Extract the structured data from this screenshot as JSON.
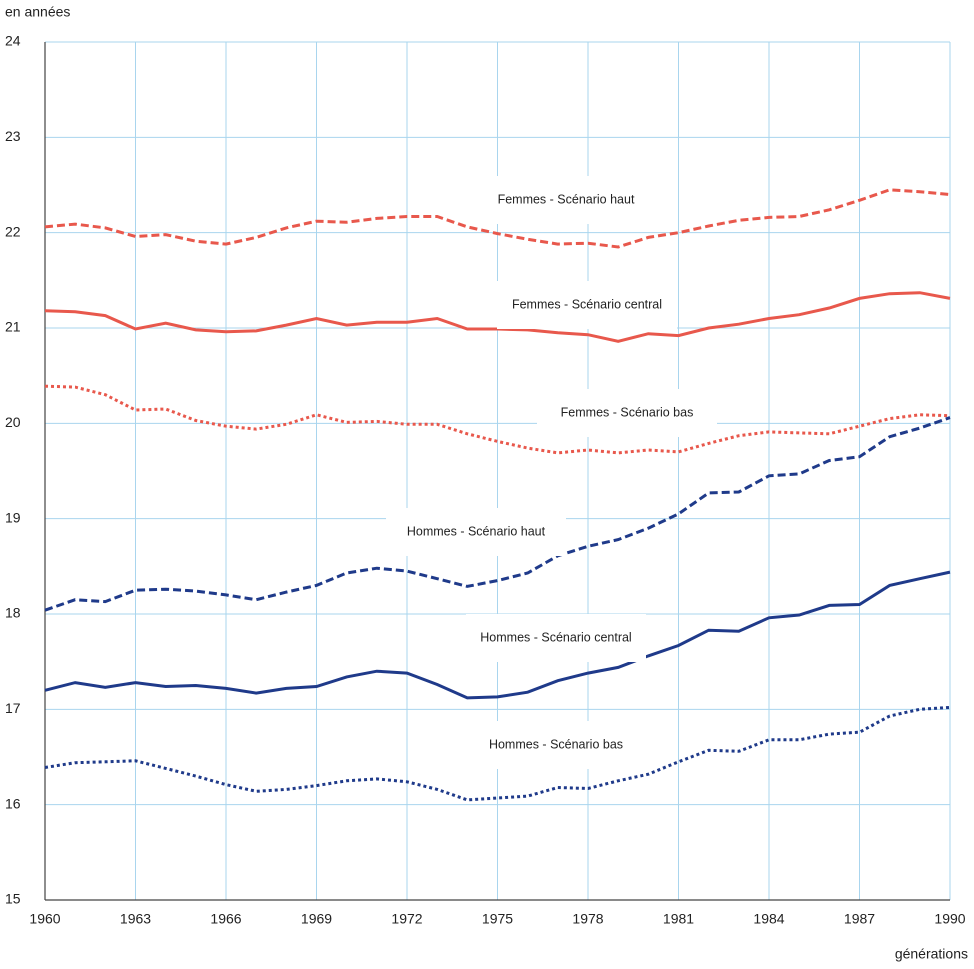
{
  "chart_data": {
    "type": "line",
    "y_label": "en années",
    "x_label": "générations",
    "x": [
      1960,
      1961,
      1962,
      1963,
      1964,
      1965,
      1966,
      1967,
      1968,
      1969,
      1970,
      1971,
      1972,
      1973,
      1974,
      1975,
      1976,
      1977,
      1978,
      1979,
      1980,
      1981,
      1982,
      1983,
      1984,
      1985,
      1986,
      1987,
      1988,
      1989,
      1990
    ],
    "xlim": [
      1960,
      1990
    ],
    "xticks": [
      1960,
      1963,
      1966,
      1969,
      1972,
      1975,
      1978,
      1981,
      1984,
      1987,
      1990
    ],
    "ylim": [
      15,
      24
    ],
    "yticks": [
      15,
      16,
      17,
      18,
      19,
      20,
      21,
      22,
      23,
      24
    ],
    "grid": true,
    "series": [
      {
        "name": "Femmes - Scénario haut",
        "color": "#e8584c",
        "dash": "dashed",
        "values": [
          22.06,
          22.09,
          22.05,
          21.96,
          21.98,
          21.91,
          21.88,
          21.95,
          22.05,
          22.12,
          22.11,
          22.15,
          22.17,
          22.17,
          22.06,
          21.99,
          21.93,
          21.88,
          21.89,
          21.85,
          21.95,
          22.0,
          22.07,
          22.13,
          22.16,
          22.17,
          22.24,
          22.34,
          22.45,
          22.43,
          22.4
        ]
      },
      {
        "name": "Femmes - Scénario central",
        "color": "#e8584c",
        "dash": "solid",
        "values": [
          21.18,
          21.17,
          21.13,
          20.99,
          21.05,
          20.98,
          20.96,
          20.97,
          21.03,
          21.1,
          21.03,
          21.06,
          21.06,
          21.1,
          20.99,
          20.99,
          20.98,
          20.95,
          20.93,
          20.86,
          20.94,
          20.92,
          21.0,
          21.04,
          21.1,
          21.14,
          21.21,
          21.31,
          21.36,
          21.37,
          21.31
        ]
      },
      {
        "name": "Femmes - Scénario bas",
        "color": "#e8584c",
        "dash": "dotted",
        "values": [
          20.39,
          20.38,
          20.3,
          20.14,
          20.15,
          20.03,
          19.97,
          19.94,
          19.99,
          20.09,
          20.01,
          20.02,
          19.99,
          19.99,
          19.89,
          19.81,
          19.74,
          19.69,
          19.72,
          19.69,
          19.72,
          19.7,
          19.79,
          19.87,
          19.91,
          19.9,
          19.89,
          19.97,
          20.05,
          20.09,
          20.08
        ]
      },
      {
        "name": "Hommes - Scénario haut",
        "color": "#1f3a8a",
        "dash": "dashed",
        "values": [
          18.04,
          18.15,
          18.13,
          18.25,
          18.26,
          18.24,
          18.2,
          18.15,
          18.23,
          18.3,
          18.43,
          18.48,
          18.45,
          18.37,
          18.29,
          18.35,
          18.43,
          18.61,
          18.71,
          18.78,
          18.9,
          19.05,
          19.27,
          19.28,
          19.45,
          19.47,
          19.61,
          19.65,
          19.86,
          19.95,
          20.06
        ]
      },
      {
        "name": "Hommes - Scénario central",
        "color": "#1f3a8a",
        "dash": "solid",
        "values": [
          17.2,
          17.28,
          17.23,
          17.28,
          17.24,
          17.25,
          17.22,
          17.17,
          17.22,
          17.24,
          17.34,
          17.4,
          17.38,
          17.26,
          17.12,
          17.13,
          17.18,
          17.3,
          17.38,
          17.44,
          17.56,
          17.67,
          17.83,
          17.82,
          17.96,
          17.99,
          18.09,
          18.1,
          18.3,
          18.37,
          18.44
        ]
      },
      {
        "name": "Hommes - Scénario bas",
        "color": "#1f3a8a",
        "dash": "dotted",
        "values": [
          16.39,
          16.44,
          16.45,
          16.46,
          16.38,
          16.3,
          16.21,
          16.14,
          16.16,
          16.2,
          16.25,
          16.27,
          16.24,
          16.16,
          16.05,
          16.07,
          16.09,
          16.18,
          16.17,
          16.25,
          16.32,
          16.45,
          16.57,
          16.56,
          16.68,
          16.68,
          16.74,
          16.76,
          16.93,
          17.0,
          17.02
        ]
      }
    ]
  }
}
